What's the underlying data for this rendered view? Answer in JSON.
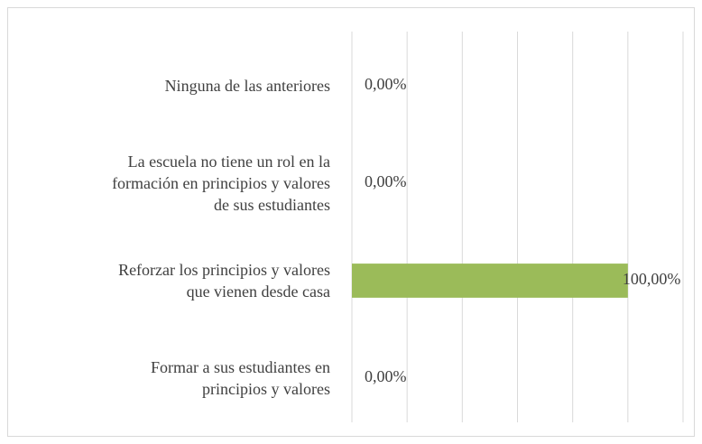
{
  "chart_data": {
    "type": "barh",
    "categories": [
      "Ninguna de las anteriores",
      "La escuela no tiene un rol en la\nformación en principios y valores\nde sus estudiantes",
      "Reforzar los principios y valores\nque vienen desde casa",
      "Formar a sus estudiantes en\nprincipios y valores"
    ],
    "values": [
      0,
      0,
      100,
      0
    ],
    "value_labels": [
      "0,00%",
      "0,00%",
      "100,00%",
      "0,00%"
    ],
    "color": "#9bbb59",
    "xlim": [
      0,
      120
    ],
    "xticks": [
      0,
      20,
      40,
      60,
      80,
      100,
      120
    ],
    "grid": true,
    "tick_labels": false
  }
}
